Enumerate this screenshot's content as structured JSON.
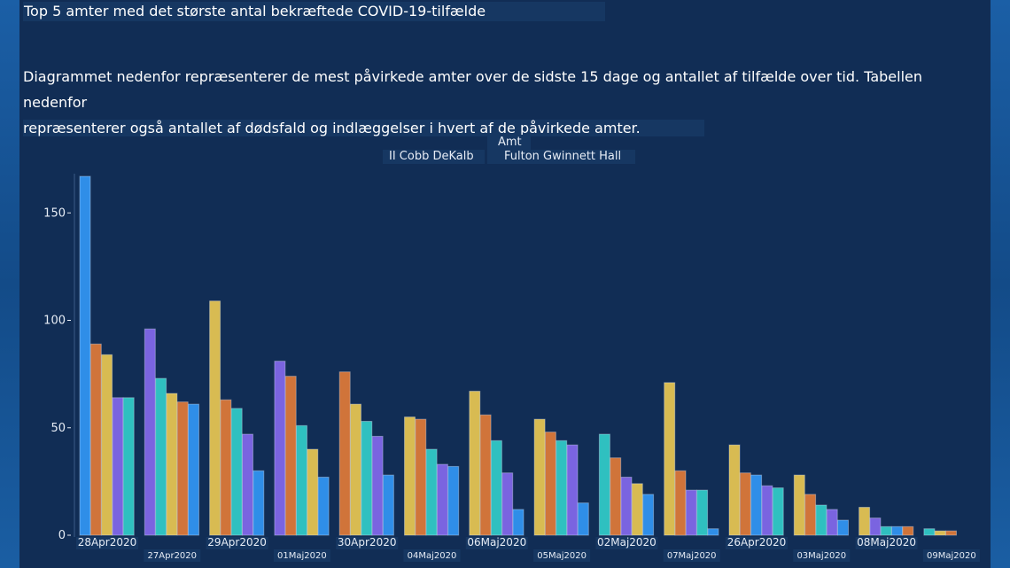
{
  "title": "Top 5 amter med det største antal bekræftede COVID-19-tilfælde",
  "description_line1": "Diagrammet nedenfor repræsenterer de mest påvirkede amter over de sidste 15 dage og antallet af tilfælde over tid. Tabellen nedenfor",
  "description_line2": "repræsenterer også antallet af dødsfald og indlæggelser i hvert af de påvirkede amter.",
  "legend": {
    "title": "Amt",
    "row1": "II Cobb DeKalb",
    "row2": "Fulton Gwinnett Hall"
  },
  "colors": {
    "blue": "#2f8ee8",
    "orange": "#d0743a",
    "yellow": "#d8bb52",
    "purple": "#7a64e0",
    "teal": "#2fc0c0",
    "background": "#112d55"
  },
  "chart_data": {
    "type": "bar",
    "ylim": [
      0,
      170
    ],
    "yticks": [
      0,
      50,
      100,
      150
    ],
    "categories": [
      "28Apr2020",
      "27Apr2020",
      "29Apr2020",
      "01Maj2020",
      "30Apr2020",
      "04Maj2020",
      "06Maj2020",
      "05Maj2020",
      "02Maj2020",
      "07Maj2020",
      "26Apr2020",
      "03Maj2020",
      "08Maj2020",
      "09Maj2020"
    ],
    "groups": [
      {
        "category": "28Apr2020",
        "bars": [
          {
            "color": "blue",
            "value": 167
          },
          {
            "color": "orange",
            "value": 89
          },
          {
            "color": "yellow",
            "value": 84
          },
          {
            "color": "purple",
            "value": 64
          },
          {
            "color": "teal",
            "value": 64
          }
        ]
      },
      {
        "category": "27Apr2020",
        "bars": [
          {
            "color": "purple",
            "value": 96
          },
          {
            "color": "teal",
            "value": 73
          },
          {
            "color": "yellow",
            "value": 66
          },
          {
            "color": "orange",
            "value": 62
          },
          {
            "color": "blue",
            "value": 61
          }
        ]
      },
      {
        "category": "29Apr2020",
        "bars": [
          {
            "color": "yellow",
            "value": 109
          },
          {
            "color": "orange",
            "value": 63
          },
          {
            "color": "teal",
            "value": 59
          },
          {
            "color": "purple",
            "value": 47
          },
          {
            "color": "blue",
            "value": 30
          }
        ]
      },
      {
        "category": "01Maj2020",
        "bars": [
          {
            "color": "purple",
            "value": 81
          },
          {
            "color": "orange",
            "value": 74
          },
          {
            "color": "teal",
            "value": 51
          },
          {
            "color": "yellow",
            "value": 40
          },
          {
            "color": "blue",
            "value": 27
          }
        ]
      },
      {
        "category": "30Apr2020",
        "bars": [
          {
            "color": "orange",
            "value": 76
          },
          {
            "color": "yellow",
            "value": 61
          },
          {
            "color": "teal",
            "value": 53
          },
          {
            "color": "purple",
            "value": 46
          },
          {
            "color": "blue",
            "value": 28
          }
        ]
      },
      {
        "category": "04Maj2020",
        "bars": [
          {
            "color": "yellow",
            "value": 55
          },
          {
            "color": "orange",
            "value": 54
          },
          {
            "color": "teal",
            "value": 40
          },
          {
            "color": "purple",
            "value": 33
          },
          {
            "color": "blue",
            "value": 32
          }
        ]
      },
      {
        "category": "06Maj2020",
        "bars": [
          {
            "color": "yellow",
            "value": 67
          },
          {
            "color": "orange",
            "value": 56
          },
          {
            "color": "teal",
            "value": 44
          },
          {
            "color": "purple",
            "value": 29
          },
          {
            "color": "blue",
            "value": 12
          }
        ]
      },
      {
        "category": "05Maj2020",
        "bars": [
          {
            "color": "yellow",
            "value": 54
          },
          {
            "color": "orange",
            "value": 48
          },
          {
            "color": "teal",
            "value": 44
          },
          {
            "color": "purple",
            "value": 42
          },
          {
            "color": "blue",
            "value": 15
          }
        ]
      },
      {
        "category": "02Maj2020",
        "bars": [
          {
            "color": "teal",
            "value": 47
          },
          {
            "color": "orange",
            "value": 36
          },
          {
            "color": "purple",
            "value": 27
          },
          {
            "color": "yellow",
            "value": 24
          },
          {
            "color": "blue",
            "value": 19
          }
        ]
      },
      {
        "category": "07Maj2020",
        "bars": [
          {
            "color": "yellow",
            "value": 71
          },
          {
            "color": "orange",
            "value": 30
          },
          {
            "color": "purple",
            "value": 21
          },
          {
            "color": "teal",
            "value": 21
          },
          {
            "color": "blue",
            "value": 3
          }
        ]
      },
      {
        "category": "26Apr2020",
        "bars": [
          {
            "color": "yellow",
            "value": 42
          },
          {
            "color": "orange",
            "value": 29
          },
          {
            "color": "blue",
            "value": 28
          },
          {
            "color": "purple",
            "value": 23
          },
          {
            "color": "teal",
            "value": 22
          }
        ]
      },
      {
        "category": "03Maj2020",
        "bars": [
          {
            "color": "yellow",
            "value": 28
          },
          {
            "color": "orange",
            "value": 19
          },
          {
            "color": "teal",
            "value": 14
          },
          {
            "color": "purple",
            "value": 12
          },
          {
            "color": "blue",
            "value": 7
          }
        ]
      },
      {
        "category": "08Maj2020",
        "bars": [
          {
            "color": "yellow",
            "value": 13
          },
          {
            "color": "purple",
            "value": 8
          },
          {
            "color": "teal",
            "value": 4
          },
          {
            "color": "blue",
            "value": 4
          },
          {
            "color": "orange",
            "value": 4
          }
        ]
      },
      {
        "category": "09Maj2020",
        "bars": [
          {
            "color": "teal",
            "value": 3
          },
          {
            "color": "yellow",
            "value": 2
          },
          {
            "color": "orange",
            "value": 2
          }
        ]
      }
    ]
  }
}
